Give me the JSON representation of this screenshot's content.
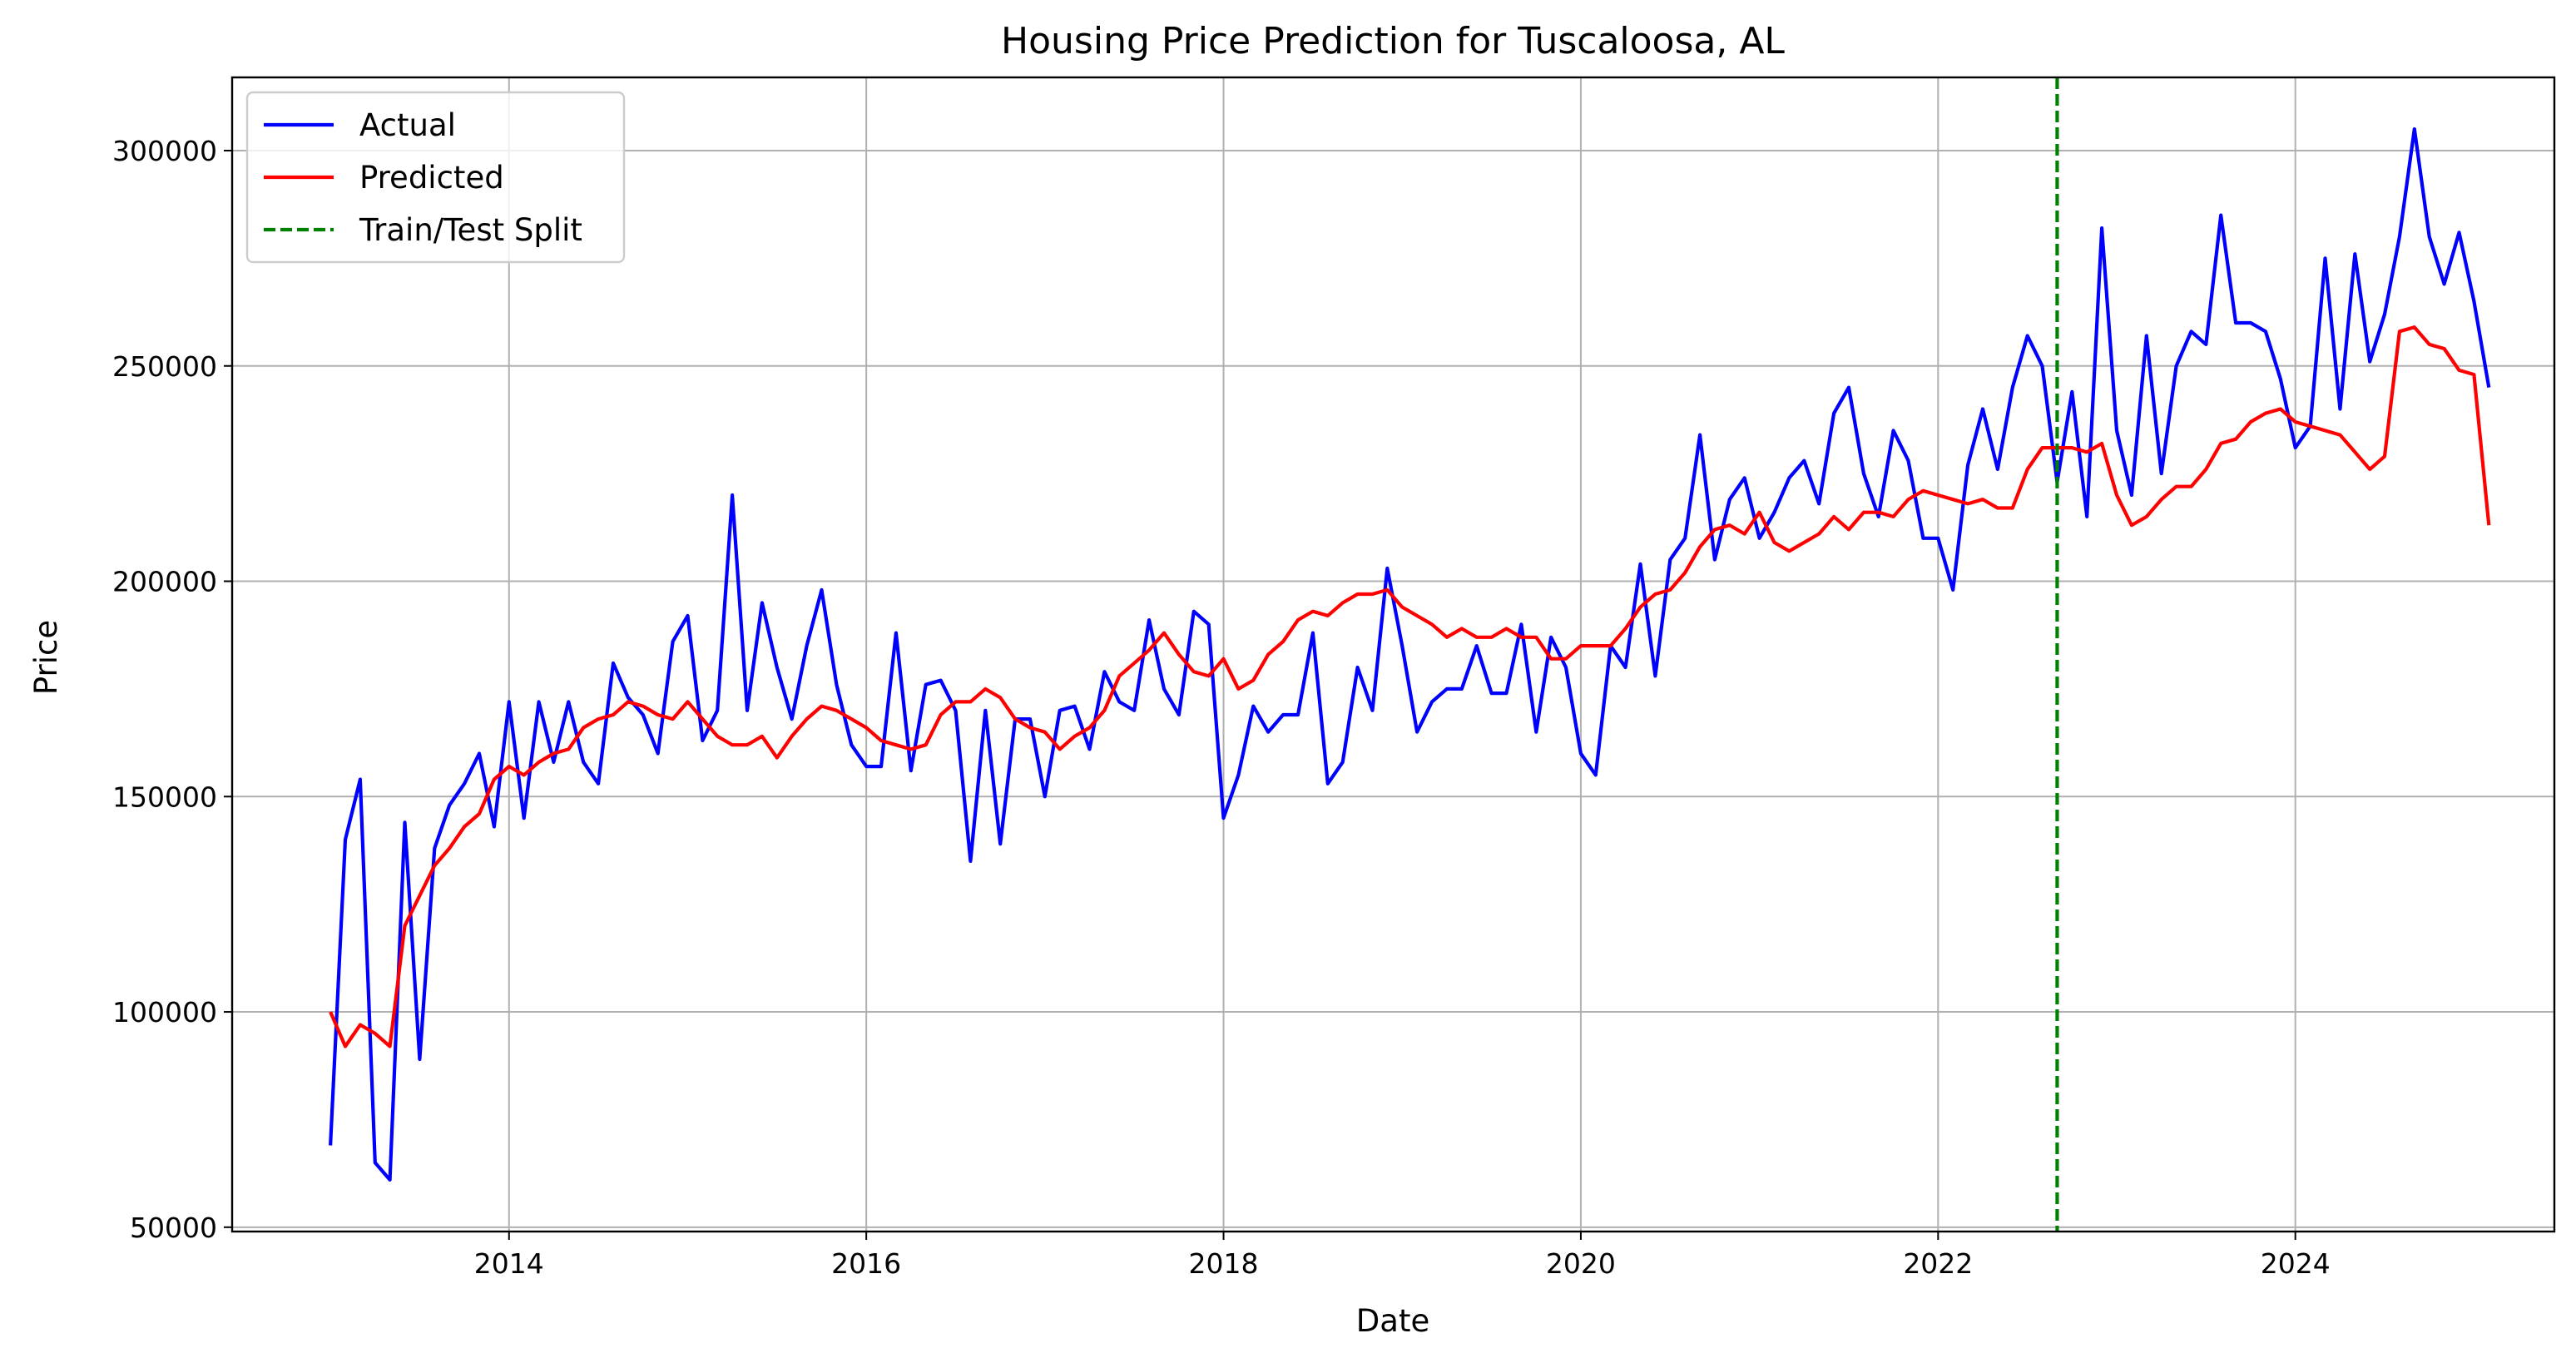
{
  "chart_data": {
    "type": "line",
    "title": "Housing Price Prediction for Tuscaloosa, AL",
    "xlabel": "Date",
    "ylabel": "Price",
    "x_axis": "date",
    "xlim": [
      2012.45,
      2025.45
    ],
    "ylim": [
      49000,
      317000
    ],
    "x_ticks": [
      2014,
      2016,
      2018,
      2020,
      2022,
      2024
    ],
    "x_tick_labels": [
      "2014",
      "2016",
      "2018",
      "2020",
      "2022",
      "2024"
    ],
    "y_ticks": [
      50000,
      100000,
      150000,
      200000,
      250000,
      300000
    ],
    "y_tick_labels": [
      "50000",
      "100000",
      "150000",
      "200000",
      "250000",
      "300000"
    ],
    "grid": true,
    "legend_position": "top-left",
    "x_start": "2013-01",
    "x_step": "monthly",
    "series": [
      {
        "name": "Actual",
        "color": "#0000ff",
        "style": "solid",
        "values": [
          69000,
          140000,
          154000,
          65000,
          61000,
          144000,
          89000,
          138000,
          148000,
          153000,
          160000,
          143000,
          172000,
          145000,
          172000,
          158000,
          172000,
          158000,
          153000,
          181000,
          173000,
          169000,
          160000,
          186000,
          192000,
          163000,
          170000,
          220000,
          170000,
          195000,
          180000,
          168000,
          185000,
          198000,
          176000,
          162000,
          157000,
          157000,
          188000,
          156000,
          176000,
          177000,
          170000,
          135000,
          170000,
          139000,
          168000,
          168000,
          150000,
          170000,
          171000,
          161000,
          179000,
          172000,
          170000,
          191000,
          175000,
          169000,
          193000,
          190000,
          145000,
          155000,
          171000,
          165000,
          169000,
          169000,
          188000,
          153000,
          158000,
          180000,
          170000,
          203000,
          185000,
          165000,
          172000,
          175000,
          175000,
          185000,
          174000,
          174000,
          190000,
          165000,
          187000,
          180000,
          160000,
          155000,
          185000,
          180000,
          204000,
          178000,
          205000,
          210000,
          234000,
          205000,
          219000,
          224000,
          210000,
          216000,
          224000,
          228000,
          218000,
          239000,
          245000,
          225000,
          215000,
          235000,
          228000,
          210000,
          210000,
          198000,
          227000,
          240000,
          226000,
          245000,
          257000,
          250000,
          223000,
          244000,
          215000,
          282000,
          235000,
          220000,
          257000,
          225000,
          250000,
          258000,
          255000,
          285000,
          260000,
          260000,
          258000,
          247000,
          231000,
          236000,
          275000,
          240000,
          276000,
          251000,
          262000,
          280000,
          305000,
          280000,
          269000,
          281000,
          265000,
          245000
        ]
      },
      {
        "name": "Predicted",
        "color": "#ff0000",
        "style": "solid",
        "values": [
          100000,
          92000,
          97000,
          95000,
          92000,
          120000,
          127000,
          134000,
          138000,
          143000,
          146000,
          154000,
          157000,
          155000,
          158000,
          160000,
          161000,
          166000,
          168000,
          169000,
          172000,
          171000,
          169000,
          168000,
          172000,
          168000,
          164000,
          162000,
          162000,
          164000,
          159000,
          164000,
          168000,
          171000,
          170000,
          168000,
          166000,
          163000,
          162000,
          161000,
          162000,
          169000,
          172000,
          172000,
          175000,
          173000,
          168000,
          166000,
          165000,
          161000,
          164000,
          166000,
          170000,
          178000,
          181000,
          184000,
          188000,
          183000,
          179000,
          178000,
          182000,
          175000,
          177000,
          183000,
          186000,
          191000,
          193000,
          192000,
          195000,
          197000,
          197000,
          198000,
          194000,
          192000,
          190000,
          187000,
          189000,
          187000,
          187000,
          189000,
          187000,
          187000,
          182000,
          182000,
          185000,
          185000,
          185000,
          189000,
          194000,
          197000,
          198000,
          202000,
          208000,
          212000,
          213000,
          211000,
          216000,
          209000,
          207000,
          209000,
          211000,
          215000,
          212000,
          216000,
          216000,
          215000,
          219000,
          221000,
          220000,
          219000,
          218000,
          219000,
          217000,
          217000,
          226000,
          231000,
          231000,
          231000,
          230000,
          232000,
          220000,
          213000,
          215000,
          219000,
          222000,
          222000,
          226000,
          232000,
          233000,
          237000,
          239000,
          240000,
          237000,
          236000,
          235000,
          234000,
          230000,
          226000,
          229000,
          258000,
          259000,
          255000,
          254000,
          249000,
          248000,
          213000
        ]
      }
    ],
    "vlines": [
      {
        "name": "Train/Test Split",
        "x": "2022-09",
        "color": "#008000",
        "style": "dashed"
      }
    ]
  }
}
